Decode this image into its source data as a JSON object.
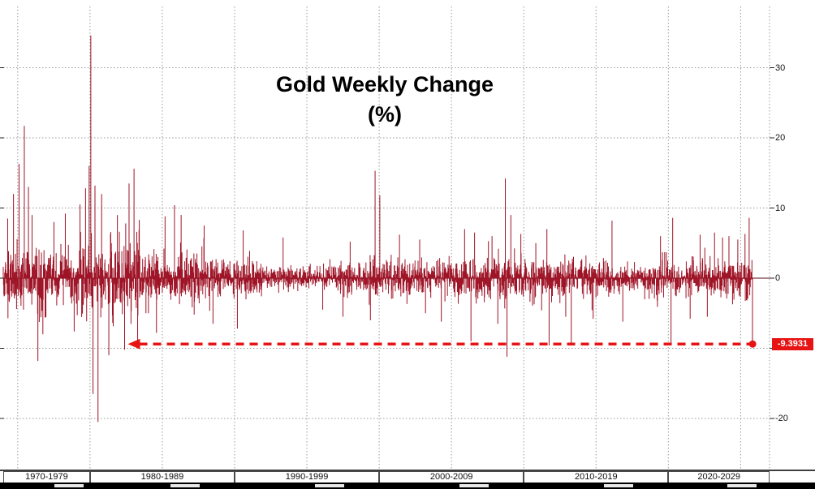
{
  "title": {
    "line1": "Gold Weekly Change",
    "line2": "(%)"
  },
  "colors": {
    "background": "#ffffff",
    "bar": "#9e1326",
    "zero_line": "#5a0a14",
    "grid": "#9a9a9a",
    "axis": "#000000",
    "tick": "#222222",
    "annotation": "#e61414",
    "badge_text": "#ffffff"
  },
  "y_axis": {
    "ticks": [
      {
        "value": 30,
        "label": "30"
      },
      {
        "value": 20,
        "label": "20"
      },
      {
        "value": 10,
        "label": "10"
      },
      {
        "value": 0,
        "label": "0"
      },
      {
        "value": -20,
        "label": "-20"
      }
    ]
  },
  "x_axis": {
    "decades": [
      {
        "label": "1970-1979",
        "from": 1974.0,
        "to": 1980
      },
      {
        "label": "1980-1989",
        "from": 1980,
        "to": 1990
      },
      {
        "label": "1990-1999",
        "from": 1990,
        "to": 2000
      },
      {
        "label": "2000-2009",
        "from": 2000,
        "to": 2010
      },
      {
        "label": "2010-2019",
        "from": 2010,
        "to": 2020
      },
      {
        "label": "2020-2029",
        "from": 2020,
        "to": 2027.0
      }
    ]
  },
  "annotation": {
    "label": "-9.3931",
    "value": -9.3931,
    "arrow_start_year": 1983.35,
    "arrow_end_year": 2025.83
  },
  "chart_data": {
    "type": "bar",
    "title": "Gold Weekly Change (%)",
    "xlabel": "",
    "ylabel": "",
    "x_unit": "weekly bars by year",
    "x_range_years": [
      1974.0,
      2027.0
    ],
    "data_start_year": 1974.0,
    "data_end_year": 2025.83,
    "points_per_year": 52.18,
    "ylim": [
      -24,
      36
    ],
    "y_gridlines": [
      30,
      20,
      10,
      0,
      -10,
      -20
    ],
    "x_gridline_start_year": 1975,
    "x_gridline_every_years": 5,
    "grid": true,
    "legend_position": "none",
    "random_seed": 1337,
    "volatility_periods": [
      {
        "from": 1974.0,
        "to": 1977.0,
        "sigma": 2.6
      },
      {
        "from": 1977.0,
        "to": 1979.0,
        "sigma": 2.1
      },
      {
        "from": 1979.0,
        "to": 1983.5,
        "sigma": 3.1
      },
      {
        "from": 1983.5,
        "to": 1988.0,
        "sigma": 1.9
      },
      {
        "from": 1988.0,
        "to": 1992.0,
        "sigma": 1.5
      },
      {
        "from": 1992.0,
        "to": 1996.0,
        "sigma": 1.0
      },
      {
        "from": 1996.0,
        "to": 1999.0,
        "sigma": 1.2
      },
      {
        "from": 1999.0,
        "to": 2002.0,
        "sigma": 1.5
      },
      {
        "from": 2002.0,
        "to": 2006.0,
        "sigma": 1.5
      },
      {
        "from": 2006.0,
        "to": 2012.0,
        "sigma": 1.9
      },
      {
        "from": 2012.0,
        "to": 2016.0,
        "sigma": 1.5
      },
      {
        "from": 2016.0,
        "to": 2019.0,
        "sigma": 1.2
      },
      {
        "from": 2019.0,
        "to": 2021.0,
        "sigma": 1.7
      },
      {
        "from": 2021.0,
        "to": 2024.0,
        "sigma": 1.4
      },
      {
        "from": 2024.0,
        "to": 2026.0,
        "sigma": 1.6
      }
    ],
    "notable_weeks": [
      {
        "year": 1974.3,
        "value": 8.5
      },
      {
        "year": 1974.7,
        "value": 12.0
      },
      {
        "year": 1975.1,
        "value": 16.3
      },
      {
        "year": 1975.45,
        "value": 21.7
      },
      {
        "year": 1975.75,
        "value": 13.0
      },
      {
        "year": 1976.0,
        "value": 9.0
      },
      {
        "year": 1976.4,
        "value": -11.8
      },
      {
        "year": 1976.75,
        "value": -8.0
      },
      {
        "year": 1977.5,
        "value": 8.0
      },
      {
        "year": 1978.3,
        "value": 9.2
      },
      {
        "year": 1978.9,
        "value": -7.6
      },
      {
        "year": 1979.3,
        "value": 10.5
      },
      {
        "year": 1979.7,
        "value": 12.8
      },
      {
        "year": 1979.95,
        "value": 16.0
      },
      {
        "year": 1980.05,
        "value": 34.6
      },
      {
        "year": 1980.2,
        "value": -16.5
      },
      {
        "year": 1980.35,
        "value": 13.2
      },
      {
        "year": 1980.55,
        "value": -20.5
      },
      {
        "year": 1980.8,
        "value": 12.0
      },
      {
        "year": 1981.3,
        "value": -11.0
      },
      {
        "year": 1981.9,
        "value": 9.0
      },
      {
        "year": 1982.4,
        "value": -10.2
      },
      {
        "year": 1982.7,
        "value": 13.5
      },
      {
        "year": 1983.05,
        "value": 15.6
      },
      {
        "year": 1983.3,
        "value": -10.0
      },
      {
        "year": 1984.6,
        "value": -7.8
      },
      {
        "year": 1985.2,
        "value": 8.8
      },
      {
        "year": 1985.85,
        "value": 10.4
      },
      {
        "year": 1986.3,
        "value": 9.0
      },
      {
        "year": 1987.9,
        "value": 7.5
      },
      {
        "year": 1988.5,
        "value": -6.5
      },
      {
        "year": 1990.2,
        "value": -7.2
      },
      {
        "year": 1990.6,
        "value": 6.8
      },
      {
        "year": 1993.35,
        "value": 5.8
      },
      {
        "year": 1996.1,
        "value": -4.5
      },
      {
        "year": 1997.5,
        "value": -5.5
      },
      {
        "year": 1998.0,
        "value": 5.2
      },
      {
        "year": 1999.4,
        "value": -6.0
      },
      {
        "year": 1999.72,
        "value": 15.3
      },
      {
        "year": 2000.05,
        "value": 11.8
      },
      {
        "year": 2001.4,
        "value": 6.2
      },
      {
        "year": 2002.8,
        "value": 5.5
      },
      {
        "year": 2003.2,
        "value": -5.0
      },
      {
        "year": 2004.3,
        "value": -6.2
      },
      {
        "year": 2005.9,
        "value": 7.0
      },
      {
        "year": 2006.35,
        "value": -9.0
      },
      {
        "year": 2006.6,
        "value": 6.5
      },
      {
        "year": 2007.8,
        "value": 6.0
      },
      {
        "year": 2008.2,
        "value": -6.5
      },
      {
        "year": 2008.72,
        "value": 14.2
      },
      {
        "year": 2008.85,
        "value": -11.2
      },
      {
        "year": 2009.1,
        "value": 9.0
      },
      {
        "year": 2009.8,
        "value": 6.3
      },
      {
        "year": 2011.6,
        "value": 7.0
      },
      {
        "year": 2011.75,
        "value": -9.6
      },
      {
        "year": 2012.9,
        "value": -5.5
      },
      {
        "year": 2013.28,
        "value": -9.2
      },
      {
        "year": 2014.8,
        "value": -5.8
      },
      {
        "year": 2016.1,
        "value": 8.2
      },
      {
        "year": 2016.85,
        "value": -6.2
      },
      {
        "year": 2019.45,
        "value": 6.0
      },
      {
        "year": 2020.18,
        "value": -9.3
      },
      {
        "year": 2020.3,
        "value": 8.6
      },
      {
        "year": 2021.5,
        "value": -5.8
      },
      {
        "year": 2022.2,
        "value": 6.2
      },
      {
        "year": 2022.7,
        "value": -5.5
      },
      {
        "year": 2023.2,
        "value": 6.5
      },
      {
        "year": 2023.75,
        "value": 5.8
      },
      {
        "year": 2024.2,
        "value": 6.0
      },
      {
        "year": 2024.8,
        "value": 5.5
      },
      {
        "year": 2025.3,
        "value": 6.3
      },
      {
        "year": 2025.6,
        "value": 8.6
      }
    ],
    "last_point": {
      "year": 2025.83,
      "value": -9.3931
    }
  }
}
